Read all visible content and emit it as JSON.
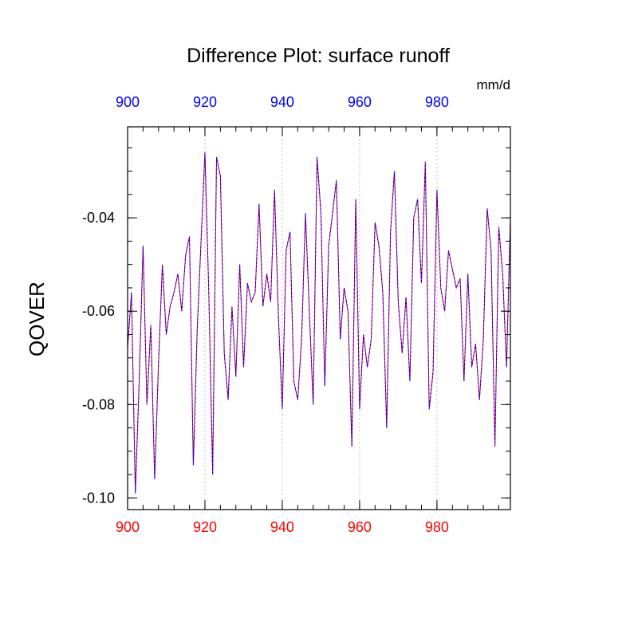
{
  "chart_data": {
    "type": "line",
    "title": "Difference Plot: surface runoff",
    "units": "mm/d",
    "ylabel": "QOVER",
    "xlabel": "",
    "xlim": [
      900,
      999
    ],
    "ylim": [
      -0.1025,
      -0.0205
    ],
    "x_ticks": [
      900,
      920,
      940,
      960,
      980
    ],
    "x_tick_labels": [
      "900",
      "920",
      "940",
      "960",
      "980"
    ],
    "y_ticks": [
      -0.1,
      -0.08,
      -0.06,
      -0.04
    ],
    "y_tick_labels": [
      "-0.10",
      "-0.08",
      "-0.06",
      "-0.04"
    ],
    "grid": "vertical dotted",
    "colors": {
      "bottom_axis_labels": "#ff0000",
      "top_axis_labels": "#0000ff",
      "line_primary": "#ff0000",
      "line_secondary": "#0000ff"
    },
    "series": [
      {
        "x": [
          900,
          901,
          902,
          903,
          904,
          905,
          906,
          907,
          908,
          909,
          910,
          911,
          912,
          913,
          914,
          915,
          916,
          917,
          918,
          919,
          920,
          921,
          922,
          923,
          924,
          925,
          926,
          927,
          928,
          929,
          930,
          931,
          932,
          933,
          934,
          935,
          936,
          937,
          938,
          939,
          940,
          941,
          942,
          943,
          944,
          945,
          946,
          947,
          948,
          949,
          950,
          951,
          952,
          953,
          954,
          955,
          956,
          957,
          958,
          959,
          960,
          961,
          962,
          963,
          964,
          965,
          966,
          967,
          968,
          969,
          970,
          971,
          972,
          973,
          974,
          975,
          976,
          977,
          978,
          979,
          980,
          981,
          982,
          983,
          984,
          985,
          986,
          987,
          988,
          989,
          990,
          991,
          992,
          993,
          994,
          995,
          996,
          997,
          998,
          999
        ],
        "values": [
          -0.068,
          -0.056,
          -0.099,
          -0.075,
          -0.046,
          -0.08,
          -0.063,
          -0.096,
          -0.071,
          -0.05,
          -0.065,
          -0.059,
          -0.056,
          -0.052,
          -0.06,
          -0.048,
          -0.044,
          -0.093,
          -0.064,
          -0.045,
          -0.026,
          -0.056,
          -0.095,
          -0.027,
          -0.031,
          -0.069,
          -0.079,
          -0.059,
          -0.074,
          -0.05,
          -0.072,
          -0.054,
          -0.058,
          -0.056,
          -0.037,
          -0.059,
          -0.052,
          -0.058,
          -0.034,
          -0.061,
          -0.081,
          -0.047,
          -0.043,
          -0.075,
          -0.079,
          -0.066,
          -0.039,
          -0.06,
          -0.08,
          -0.027,
          -0.039,
          -0.076,
          -0.046,
          -0.039,
          -0.032,
          -0.066,
          -0.055,
          -0.06,
          -0.089,
          -0.036,
          -0.081,
          -0.065,
          -0.072,
          -0.066,
          -0.041,
          -0.046,
          -0.056,
          -0.085,
          -0.043,
          -0.03,
          -0.058,
          -0.069,
          -0.057,
          -0.075,
          -0.04,
          -0.036,
          -0.054,
          -0.028,
          -0.081,
          -0.073,
          -0.034,
          -0.055,
          -0.06,
          -0.047,
          -0.051,
          -0.055,
          -0.053,
          -0.075,
          -0.052,
          -0.072,
          -0.067,
          -0.079,
          -0.066,
          -0.038,
          -0.047,
          -0.089,
          -0.042,
          -0.052,
          -0.072,
          -0.04
        ]
      }
    ]
  }
}
